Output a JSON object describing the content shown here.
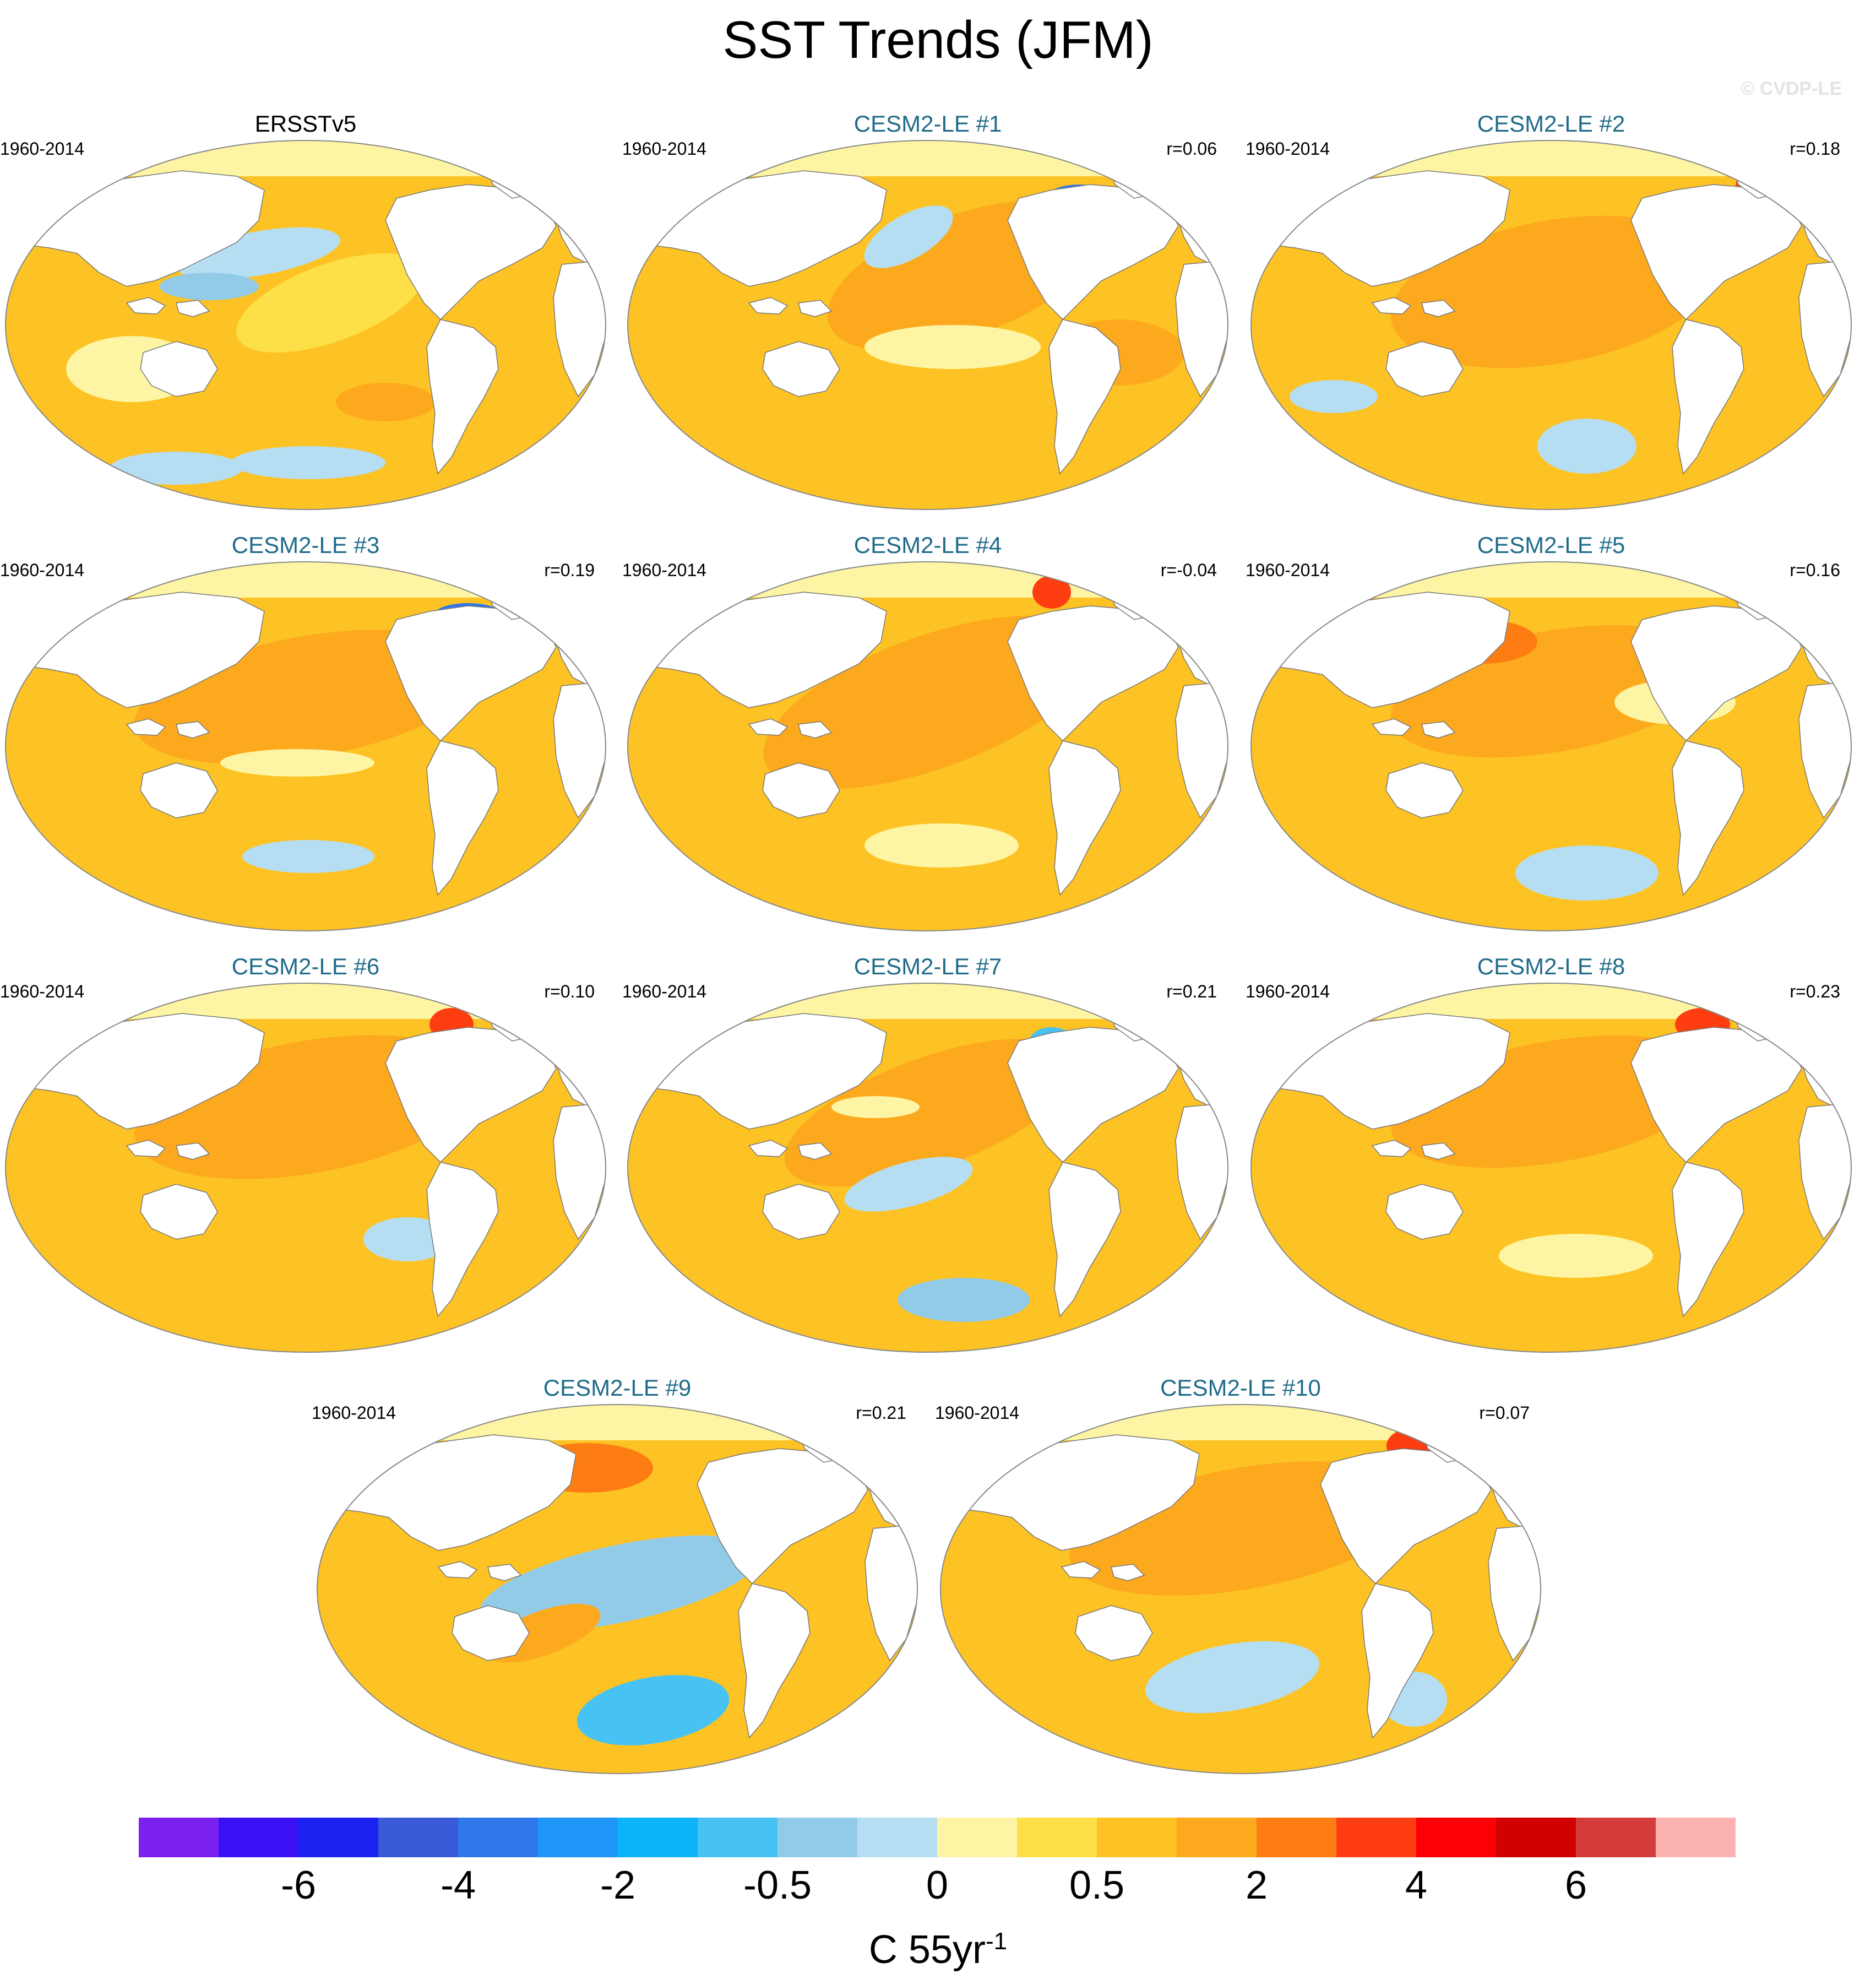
{
  "title": "SST Trends (JFM)",
  "watermark": "© CVDP-LE",
  "panels": [
    {
      "label": "ERSSTv5",
      "period": "1960-2014",
      "r": "",
      "observed": true,
      "variant": 0
    },
    {
      "label": "CESM2-LE #1",
      "period": "1960-2014",
      "r": "r=0.06",
      "observed": false,
      "variant": 1
    },
    {
      "label": "CESM2-LE #2",
      "period": "1960-2014",
      "r": "r=0.18",
      "observed": false,
      "variant": 2
    },
    {
      "label": "CESM2-LE #3",
      "period": "1960-2014",
      "r": "r=0.19",
      "observed": false,
      "variant": 3
    },
    {
      "label": "CESM2-LE #4",
      "period": "1960-2014",
      "r": "r=-0.04",
      "observed": false,
      "variant": 4
    },
    {
      "label": "CESM2-LE #5",
      "period": "1960-2014",
      "r": "r=0.16",
      "observed": false,
      "variant": 5
    },
    {
      "label": "CESM2-LE #6",
      "period": "1960-2014",
      "r": "r=0.10",
      "observed": false,
      "variant": 6
    },
    {
      "label": "CESM2-LE #7",
      "period": "1960-2014",
      "r": "r=0.21",
      "observed": false,
      "variant": 7
    },
    {
      "label": "CESM2-LE #8",
      "period": "1960-2014",
      "r": "r=0.23",
      "observed": false,
      "variant": 8
    },
    {
      "label": "CESM2-LE #9",
      "period": "1960-2014",
      "r": "r=0.21",
      "observed": false,
      "variant": 9
    },
    {
      "label": "CESM2-LE #10",
      "period": "1960-2014",
      "r": "r=0.07",
      "observed": false,
      "variant": 10
    }
  ],
  "colorbar": {
    "colors": [
      "#7b20ee",
      "#3a10f5",
      "#1b23f0",
      "#3a5ad8",
      "#2e78ea",
      "#1f95f8",
      "#0cb4f7",
      "#47c3f3",
      "#92cbe8",
      "#b6def2",
      "#fdf5a3",
      "#fde048",
      "#fdc223",
      "#fda91e",
      "#fd7d12",
      "#fe3d10",
      "#fd0005",
      "#d10101",
      "#d43c3c",
      "#fdb2b2"
    ],
    "labels": [
      "-6",
      "-4",
      "-2",
      "-0.5",
      "0",
      "0.5",
      "2",
      "4",
      "6"
    ],
    "label_boundaries": [
      2,
      4,
      6,
      8,
      10,
      12,
      14,
      16,
      18
    ],
    "units_base": "C 55yr",
    "units_exp": "-1"
  },
  "map_colors": {
    "land": "#ffffff",
    "land_outline": "#777777",
    "arctic_ocean": "#fdf5a3",
    "base_ocean": "#fdc223",
    "warm": "#fda91e",
    "strong_warm": "#fd7d12",
    "hot": "#fe3d10",
    "pale": "#fdf5a3",
    "light_yellow": "#fde048",
    "cool": "#b6def2",
    "cooler": "#92cbe8",
    "cold": "#47c3f3",
    "colder": "#2e78ea"
  }
}
